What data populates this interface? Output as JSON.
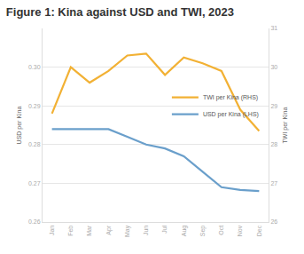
{
  "chart_data": {
    "type": "line",
    "title": "Figure 1: Kina against USD and TWI, 2023",
    "categories": [
      "Jan",
      "Feb",
      "Mar",
      "Apr",
      "May",
      "Jun",
      "Jul",
      "Aug",
      "Sep",
      "Oct",
      "Nov",
      "Dec"
    ],
    "series": [
      {
        "name": "TWI per Kina (RHS)",
        "color": "#f2b134",
        "axis": "y2",
        "values": [
          28.8,
          30.0,
          29.6,
          29.9,
          30.3,
          30.35,
          29.8,
          30.25,
          30.1,
          29.9,
          28.9,
          28.35
        ]
      },
      {
        "name": "USD per Kina (LHS)",
        "color": "#6a9fcb",
        "values": [
          0.284,
          0.284,
          0.284,
          0.284,
          0.282,
          0.28,
          0.279,
          0.277,
          0.273,
          0.269,
          0.2683,
          0.268
        ]
      }
    ],
    "y_label": "USD per Kina",
    "y2_label": "TWI per Kina",
    "ylim": [
      0.26,
      0.31
    ],
    "yticks": [
      0.26,
      0.27,
      0.28,
      0.29,
      {
        "value": 0.3,
        "label": "0.30"
      }
    ],
    "y2lim": [
      26,
      31
    ],
    "y2ticks": [
      26,
      27,
      28,
      29,
      30,
      31
    ],
    "grid": true,
    "legend": "right"
  }
}
